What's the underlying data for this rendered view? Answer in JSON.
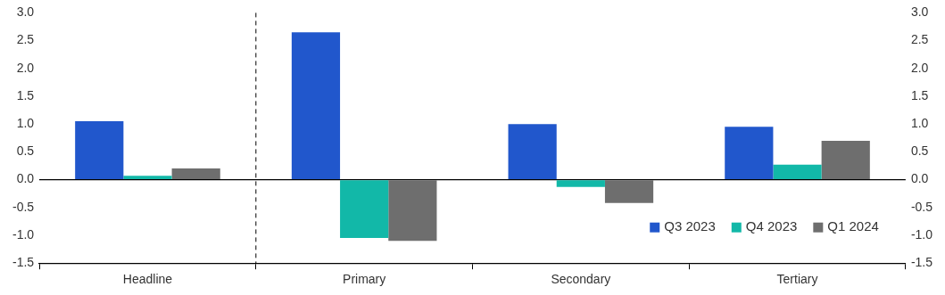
{
  "chart_data": {
    "type": "bar",
    "categories": [
      "Headline",
      "Primary",
      "Secondary",
      "Tertiary"
    ],
    "series": [
      {
        "name": "Q3 2023",
        "color": "#2157cc",
        "values": [
          1.05,
          2.65,
          1.0,
          0.95
        ]
      },
      {
        "name": "Q4 2023",
        "color": "#12b8a8",
        "values": [
          0.07,
          -1.05,
          -0.13,
          0.27
        ]
      },
      {
        "name": "Q1 2024",
        "color": "#6e6e6e",
        "values": [
          0.2,
          -1.1,
          -0.42,
          0.7
        ]
      }
    ],
    "ylim": [
      -1.5,
      3.0
    ],
    "yticks": [
      -1.5,
      {
        "value": -1.0,
        "label": "-1.0"
      },
      -0.5,
      {
        "value": 0.0,
        "label": "0.0"
      },
      0.5,
      {
        "value": 1.0,
        "label": "1.0"
      },
      1.5,
      {
        "value": 2.0,
        "label": "2.0"
      },
      2.5,
      {
        "value": 3.0,
        "label": "3.0"
      }
    ],
    "y2lim": [
      -1.5,
      3.0
    ],
    "y2ticks": [
      -1.5,
      {
        "value": -1.0,
        "label": "-1.0"
      },
      -0.5,
      {
        "value": 0.0,
        "label": "0.0"
      },
      0.5,
      {
        "value": 1.0,
        "label": "1.0"
      },
      1.5,
      {
        "value": 2.0,
        "label": "2.0"
      },
      2.5,
      {
        "value": 3.0,
        "label": "3.0"
      }
    ],
    "grid": false,
    "legend": "lower right"
  }
}
